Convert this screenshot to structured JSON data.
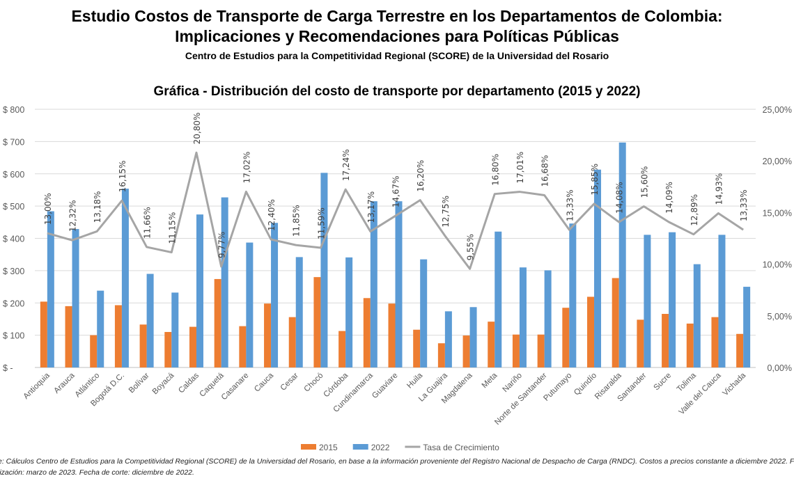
{
  "header": {
    "title_line1": "Estudio Costos de Transporte de Carga Terrestre en los Departamentos de Colombia:",
    "title_line2": "Implicaciones y Recomendaciones para Políticas Públicas",
    "subtitle": "Centro de Estudios para la Competitividad Regional (SCORE) de la Universidad del Rosario"
  },
  "chart_data": {
    "type": "bar",
    "title": "Gráfica - Distribución del costo de transporte por departamento (2015 y 2022)",
    "categories": [
      "Antioquia",
      "Arauca",
      "Atlántico",
      "Bogotá D.C.",
      "Bolívar",
      "Boyacá",
      "Caldas",
      "Caquetá",
      "Casanare",
      "Cauca",
      "Cesar",
      "Chocó",
      "Córdoba",
      "Cundinamarca",
      "Guaviare",
      "Huila",
      "La Guajira",
      "Magdalena",
      "Meta",
      "Nariño",
      "Norte de Santander",
      "Putumayo",
      "Quindío",
      "Risaralda",
      "Santander",
      "Sucre",
      "Tolima",
      "Valle del Cauca",
      "Vichada"
    ],
    "series": [
      {
        "name": "2015",
        "type": "bar",
        "axis": "left",
        "color": "#ed7d31",
        "values": [
          204,
          190,
          100,
          193,
          133,
          110,
          126,
          274,
          128,
          198,
          156,
          280,
          113,
          215,
          198,
          117,
          75,
          99,
          142,
          102,
          102,
          185,
          219,
          277,
          148,
          166,
          136,
          156,
          104
        ]
      },
      {
        "name": "2022",
        "type": "bar",
        "axis": "left",
        "color": "#5b9bd5",
        "values": [
          484,
          429,
          238,
          554,
          290,
          232,
          474,
          527,
          387,
          448,
          342,
          603,
          341,
          515,
          515,
          335,
          174,
          187,
          421,
          310,
          301,
          446,
          613,
          697,
          411,
          419,
          320,
          411,
          250
        ]
      },
      {
        "name": "Tasa de Crecimiento",
        "type": "line",
        "axis": "right",
        "color": "#a5a5a5",
        "values": [
          13.0,
          12.32,
          13.18,
          16.15,
          11.66,
          11.15,
          20.8,
          9.77,
          17.02,
          12.4,
          11.85,
          11.59,
          17.24,
          13.17,
          14.67,
          16.2,
          12.75,
          9.55,
          16.8,
          17.01,
          16.68,
          13.33,
          15.85,
          14.08,
          15.6,
          14.09,
          12.89,
          14.93,
          13.33
        ],
        "labels": [
          "13,00%",
          "12,32%",
          "13,18%",
          "16,15%",
          "11,66%",
          "11,15%",
          "20,80%",
          "9,77%",
          "17,02%",
          "12,40%",
          "11,85%",
          "11,59%",
          "17,24%",
          "13,17%",
          "14,67%",
          "16,20%",
          "12,75%",
          "9,55%",
          "16,80%",
          "17,01%",
          "16,68%",
          "13,33%",
          "15,85%",
          "14,08%",
          "15,60%",
          "14,09%",
          "12,89%",
          "14,93%",
          "13,33%"
        ]
      }
    ],
    "y_left": {
      "range": [
        0,
        800
      ],
      "ticks": [
        "$ -",
        "$ 100",
        "$ 200",
        "$ 300",
        "$ 400",
        "$ 500",
        "$ 600",
        "$ 700",
        "$ 800"
      ]
    },
    "y_right": {
      "range": [
        0,
        25
      ],
      "ticks": [
        "0,00%",
        "5,00%",
        "10,00%",
        "15,00%",
        "20,00%",
        "25,00%"
      ]
    },
    "grid": true,
    "legend_position": "bottom"
  },
  "footer": {
    "line1": "e: Cálculos Centro de Estudios para la Competitividad Regional (SCORE) de la Universidad del Rosario, en base a la información proveniente del Registro Nacional de Despacho de Carga (RNDC). Costos a precios constante a diciembre 2022. Fec",
    "line2": "lización: marzo de 2023. Fecha de corte: diciembre de 2022."
  }
}
